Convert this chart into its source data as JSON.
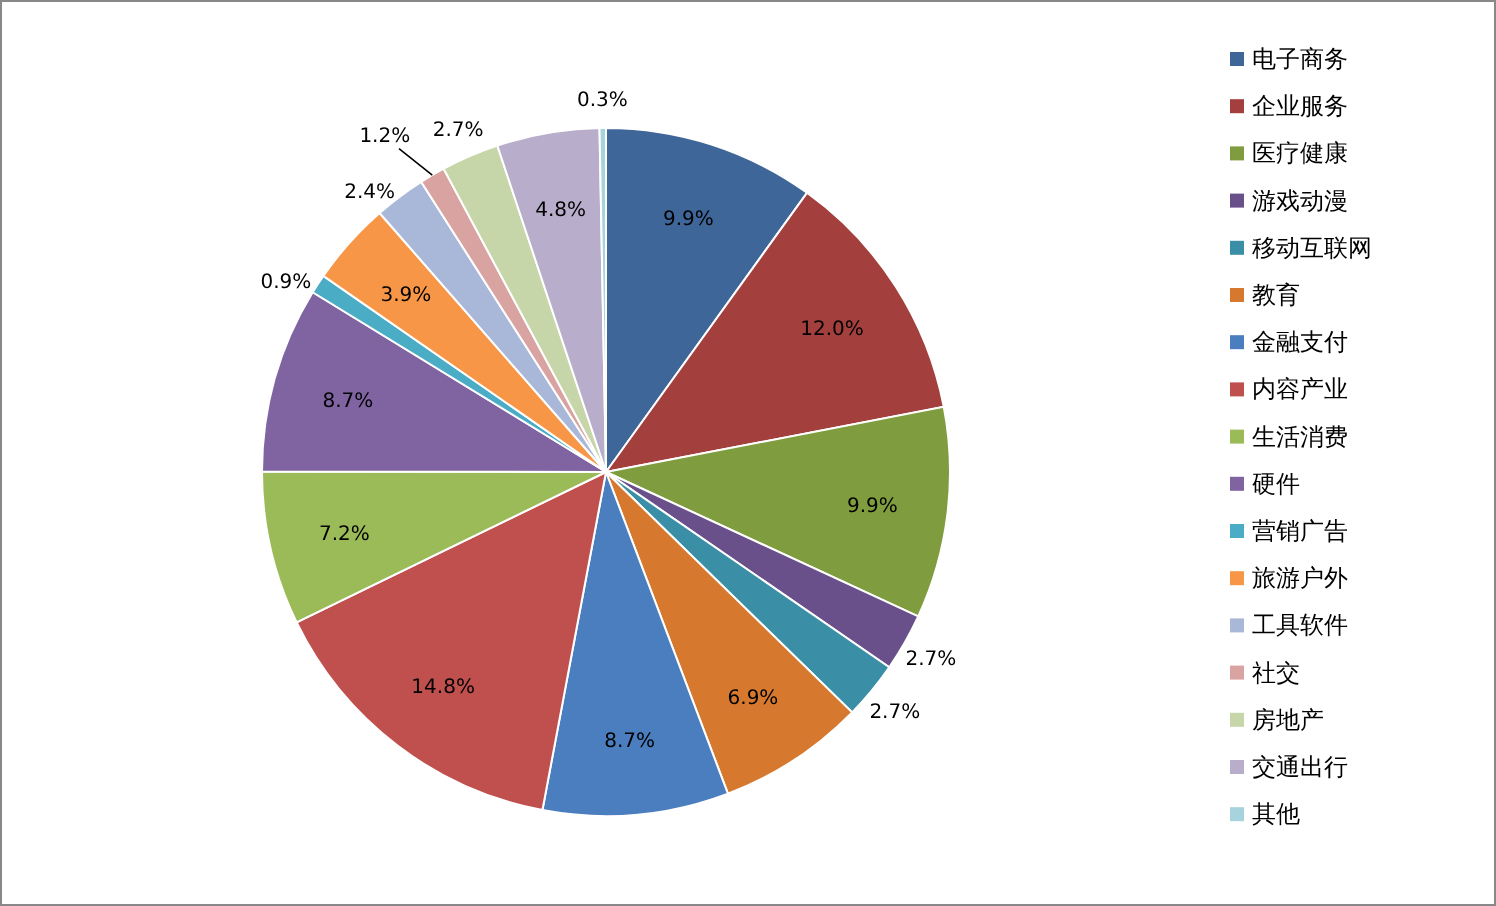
{
  "chart_data": {
    "type": "pie",
    "categories": [
      "电子商务",
      "企业服务",
      "医疗健康",
      "游戏动漫",
      "移动互联网",
      "教育",
      "金融支付",
      "内容产业",
      "生活消费",
      "硬件",
      "营销广告",
      "旅游户外",
      "工具软件",
      "社交",
      "房地产",
      "交通出行",
      "其他"
    ],
    "values": [
      9.9,
      12.0,
      9.9,
      2.7,
      2.7,
      6.9,
      8.7,
      14.8,
      7.2,
      8.7,
      0.9,
      3.9,
      2.4,
      1.2,
      2.7,
      4.8,
      0.3
    ],
    "colors": [
      "#3f6699",
      "#a33f3d",
      "#7f9c3f",
      "#69508a",
      "#3a8fa6",
      "#d6792f",
      "#4a7ebf",
      "#c0504d",
      "#9bbb59",
      "#8064a2",
      "#4bacc6",
      "#f79646",
      "#a9b8d8",
      "#d9a3a2",
      "#c6d6a8",
      "#b8aecb",
      "#a6d3de"
    ],
    "value_labels": [
      "9.9%",
      "12.0%",
      "9.9%",
      "2.7%",
      "2.7%",
      "6.9%",
      "8.7%",
      "14.8%",
      "7.2%",
      "8.7%",
      "0.9%",
      "3.9%",
      "2.4%",
      "1.2%",
      "2.7%",
      "4.8%",
      "0.3%"
    ],
    "legend": "right"
  }
}
